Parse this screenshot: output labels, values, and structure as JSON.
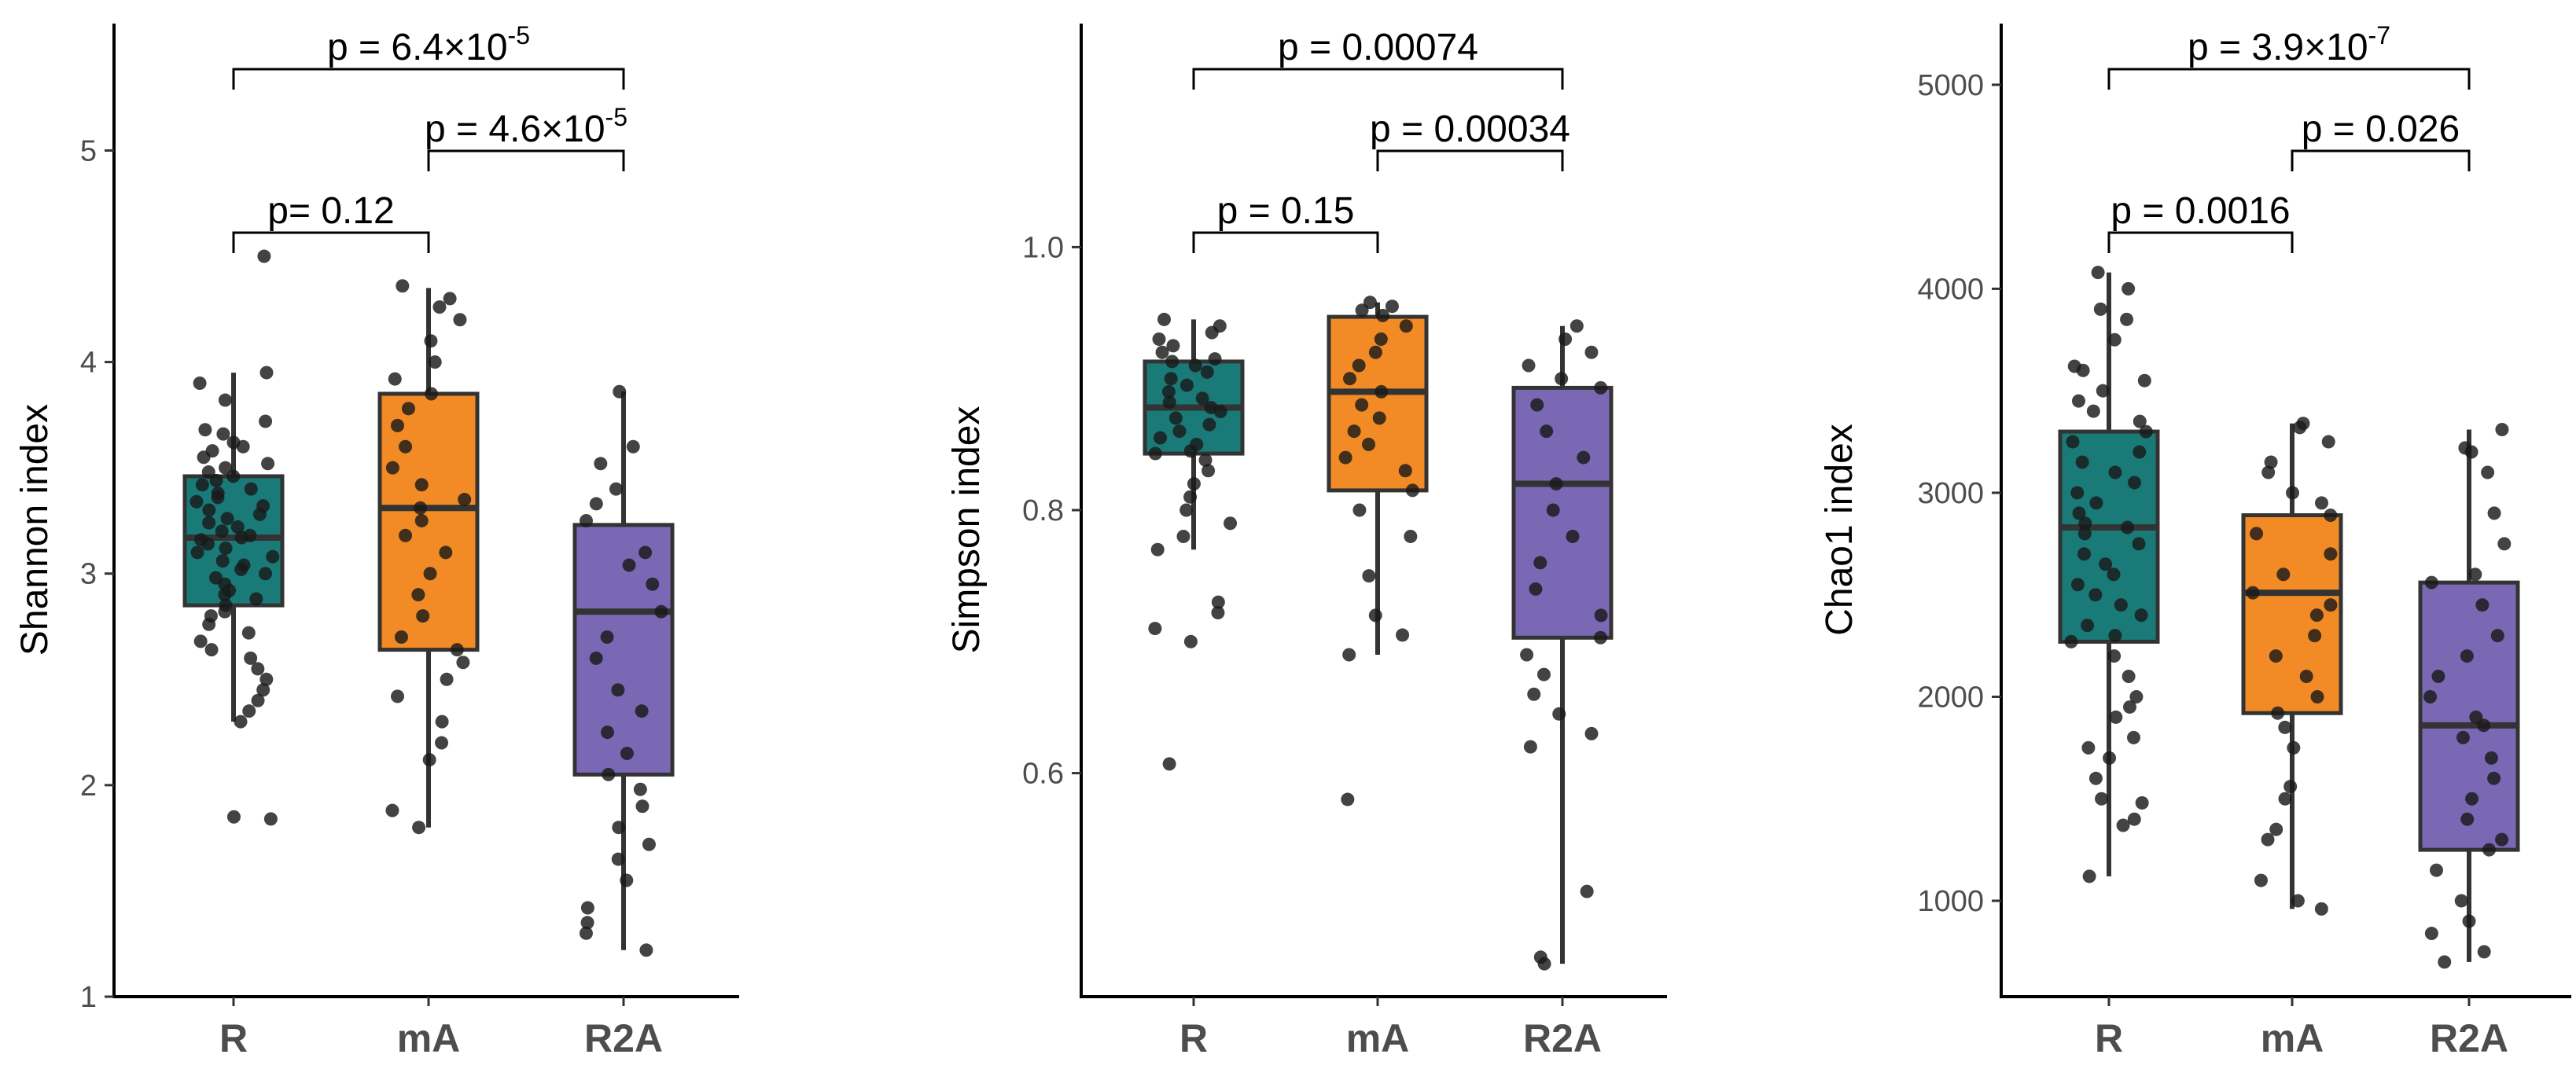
{
  "colors": {
    "R": "#1a7a78",
    "mA": "#f28a25",
    "R2A": "#7b68b5",
    "outline": "#333333",
    "point": "#1a1a1a"
  },
  "chart_data": [
    {
      "type": "box",
      "ylabel": "Shannon index",
      "ylim": [
        1,
        5.6
      ],
      "yticks": [
        1,
        2,
        3,
        4,
        5
      ],
      "categories": [
        "R",
        "mA",
        "R2A"
      ],
      "boxes": [
        {
          "category": "R",
          "whisker_low": 2.3,
          "q1": 2.85,
          "median": 3.17,
          "q3": 3.46,
          "whisker_high": 3.95,
          "points": [
            4.5,
            3.95,
            3.9,
            3.82,
            3.72,
            3.68,
            3.66,
            3.62,
            3.6,
            3.58,
            3.55,
            3.52,
            3.5,
            3.48,
            3.46,
            3.44,
            3.42,
            3.4,
            3.38,
            3.36,
            3.34,
            3.32,
            3.3,
            3.28,
            3.26,
            3.24,
            3.22,
            3.2,
            3.18,
            3.17,
            3.16,
            3.14,
            3.12,
            3.1,
            3.08,
            3.06,
            3.04,
            3.02,
            3.0,
            2.98,
            2.95,
            2.92,
            2.9,
            2.88,
            2.85,
            2.82,
            2.8,
            2.76,
            2.72,
            2.68,
            2.64,
            2.6,
            2.55,
            2.5,
            2.45,
            2.4,
            2.35,
            2.3,
            1.85,
            1.84
          ]
        },
        {
          "category": "mA",
          "whisker_low": 1.8,
          "q1": 2.64,
          "median": 3.31,
          "q3": 3.85,
          "whisker_high": 4.35,
          "points": [
            4.36,
            4.3,
            4.26,
            4.2,
            4.1,
            4.0,
            3.92,
            3.85,
            3.78,
            3.7,
            3.6,
            3.5,
            3.42,
            3.35,
            3.31,
            3.25,
            3.18,
            3.1,
            3.0,
            2.9,
            2.8,
            2.7,
            2.64,
            2.58,
            2.5,
            2.42,
            2.3,
            2.2,
            2.12,
            1.88,
            1.8
          ]
        },
        {
          "category": "R2A",
          "whisker_low": 1.22,
          "q1": 2.05,
          "median": 2.82,
          "q3": 3.23,
          "whisker_high": 3.86,
          "points": [
            3.86,
            3.6,
            3.52,
            3.4,
            3.33,
            3.25,
            3.1,
            3.04,
            2.95,
            2.82,
            2.7,
            2.6,
            2.45,
            2.35,
            2.25,
            2.15,
            2.05,
            1.98,
            1.9,
            1.8,
            1.72,
            1.65,
            1.55,
            1.42,
            1.35,
            1.3,
            1.22
          ]
        }
      ],
      "comparisons": [
        {
          "groups": [
            "R",
            "R2A"
          ],
          "label": "p = 6.4×10",
          "exponent": "-5",
          "level": 3
        },
        {
          "groups": [
            "mA",
            "R2A"
          ],
          "label": "p = 4.6×10",
          "exponent": "-5",
          "level": 2
        },
        {
          "groups": [
            "R",
            "mA"
          ],
          "label": "p= 0.12",
          "exponent": "",
          "level": 1
        }
      ]
    },
    {
      "type": "box",
      "ylabel": "Simpson index",
      "ylim": [
        0.43,
        1.17
      ],
      "yticks": [
        0.6,
        0.8,
        1.0
      ],
      "ytick_labels": [
        "0.6",
        "0.8",
        "1.0"
      ],
      "categories": [
        "R",
        "mA",
        "R2A"
      ],
      "boxes": [
        {
          "category": "R",
          "whisker_low": 0.77,
          "q1": 0.843,
          "median": 0.878,
          "q3": 0.913,
          "whisker_high": 0.945,
          "points": [
            0.945,
            0.94,
            0.935,
            0.93,
            0.925,
            0.92,
            0.915,
            0.913,
            0.91,
            0.905,
            0.9,
            0.895,
            0.89,
            0.885,
            0.882,
            0.878,
            0.875,
            0.87,
            0.865,
            0.86,
            0.855,
            0.85,
            0.845,
            0.843,
            0.838,
            0.83,
            0.82,
            0.81,
            0.8,
            0.79,
            0.78,
            0.77,
            0.73,
            0.722,
            0.71,
            0.7,
            0.607
          ]
        },
        {
          "category": "mA",
          "whisker_low": 0.69,
          "q1": 0.815,
          "median": 0.89,
          "q3": 0.947,
          "whisker_high": 0.958,
          "points": [
            0.958,
            0.955,
            0.952,
            0.948,
            0.94,
            0.93,
            0.92,
            0.91,
            0.9,
            0.89,
            0.88,
            0.87,
            0.86,
            0.85,
            0.84,
            0.83,
            0.815,
            0.8,
            0.78,
            0.75,
            0.72,
            0.705,
            0.69,
            0.58
          ]
        },
        {
          "category": "R2A",
          "whisker_low": 0.455,
          "q1": 0.703,
          "median": 0.82,
          "q3": 0.893,
          "whisker_high": 0.94,
          "points": [
            0.94,
            0.93,
            0.92,
            0.91,
            0.9,
            0.893,
            0.88,
            0.86,
            0.84,
            0.82,
            0.8,
            0.78,
            0.76,
            0.74,
            0.72,
            0.703,
            0.69,
            0.675,
            0.66,
            0.645,
            0.63,
            0.62,
            0.51,
            0.46,
            0.455
          ]
        }
      ],
      "comparisons": [
        {
          "groups": [
            "R",
            "R2A"
          ],
          "label": "p = 0.00074",
          "exponent": "",
          "level": 3
        },
        {
          "groups": [
            "mA",
            "R2A"
          ],
          "label": "p = 0.00034",
          "exponent": "",
          "level": 2
        },
        {
          "groups": [
            "R",
            "mA"
          ],
          "label": "p = 0.15",
          "exponent": "",
          "level": 1
        }
      ]
    },
    {
      "type": "box",
      "ylabel": "Chao1 index",
      "ylim": [
        530,
        5300
      ],
      "yticks": [
        1000,
        2000,
        3000,
        4000,
        5000
      ],
      "categories": [
        "R",
        "mA",
        "R2A"
      ],
      "boxes": [
        {
          "category": "R",
          "whisker_low": 1120,
          "q1": 2270,
          "median": 2830,
          "q3": 3300,
          "whisker_high": 4080,
          "points": [
            4080,
            4000,
            3900,
            3850,
            3750,
            3620,
            3600,
            3550,
            3500,
            3450,
            3400,
            3350,
            3300,
            3250,
            3200,
            3150,
            3100,
            3050,
            3000,
            2950,
            2900,
            2850,
            2830,
            2800,
            2750,
            2700,
            2650,
            2600,
            2550,
            2500,
            2450,
            2400,
            2350,
            2300,
            2270,
            2200,
            2100,
            2000,
            1950,
            1900,
            1800,
            1750,
            1700,
            1600,
            1500,
            1480,
            1400,
            1370,
            1120
          ]
        },
        {
          "category": "mA",
          "whisker_low": 960,
          "q1": 1920,
          "median": 2510,
          "q3": 2890,
          "whisker_high": 3340,
          "points": [
            3340,
            3320,
            3250,
            3150,
            3100,
            3000,
            2950,
            2890,
            2800,
            2700,
            2600,
            2510,
            2450,
            2400,
            2300,
            2200,
            2100,
            2000,
            1920,
            1850,
            1750,
            1560,
            1500,
            1350,
            1300,
            1100,
            1000,
            960
          ]
        },
        {
          "category": "R2A",
          "whisker_low": 700,
          "q1": 1250,
          "median": 1860,
          "q3": 2560,
          "whisker_high": 3310,
          "points": [
            3310,
            3220,
            3200,
            3100,
            2900,
            2750,
            2600,
            2560,
            2450,
            2300,
            2200,
            2100,
            2000,
            1900,
            1860,
            1800,
            1700,
            1600,
            1500,
            1400,
            1300,
            1250,
            1150,
            1000,
            900,
            840,
            750,
            700
          ]
        }
      ],
      "comparisons": [
        {
          "groups": [
            "R",
            "R2A"
          ],
          "label": "p = 3.9×10",
          "exponent": "-7",
          "level": 3
        },
        {
          "groups": [
            "mA",
            "R2A"
          ],
          "label": "p = 0.026",
          "exponent": "",
          "level": 2
        },
        {
          "groups": [
            "R",
            "mA"
          ],
          "label": "p = 0.0016",
          "exponent": "",
          "level": 1
        }
      ]
    }
  ]
}
